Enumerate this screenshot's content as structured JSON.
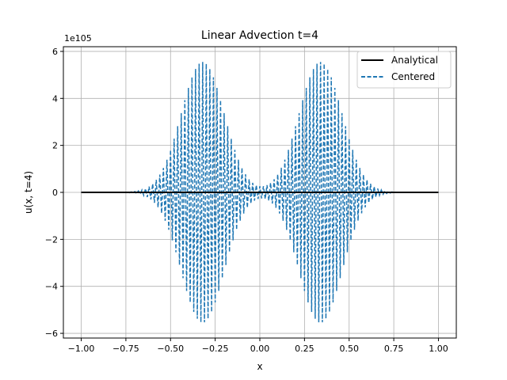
{
  "chart_data": {
    "type": "line",
    "title": "Linear Advection t=4",
    "xlabel": "x",
    "ylabel": "u(x, t=4)",
    "y_offset_text": "1e105",
    "xlim": [
      -1.1,
      1.1
    ],
    "ylim": [
      -6.2,
      6.2
    ],
    "y_scale_note": "values in units of 1e105",
    "x_ticks": [
      -1.0,
      -0.75,
      -0.5,
      -0.25,
      0.0,
      0.25,
      0.5,
      0.75,
      1.0
    ],
    "x_tick_labels": [
      "−1.00",
      "−0.75",
      "−0.50",
      "−0.25",
      "0.00",
      "0.25",
      "0.50",
      "0.75",
      "1.00"
    ],
    "y_ticks": [
      -6,
      -4,
      -2,
      0,
      2,
      4,
      6
    ],
    "y_tick_labels": [
      "−6",
      "−4",
      "−2",
      "0",
      "2",
      "4",
      "6"
    ],
    "grid": true,
    "legend_position": "top-right",
    "series": [
      {
        "name": "Analytical",
        "style": "solid",
        "color": "#000000",
        "x": [
          -1.0,
          1.0
        ],
        "y": [
          0,
          0
        ]
      },
      {
        "name": "Centered",
        "style": "dashed",
        "color": "#1f77b4",
        "domain": [
          -1.0,
          1.0
        ],
        "samples": 201,
        "envelope": {
          "peaks": [
            {
              "center": -0.32,
              "amplitude": 5.55,
              "width": 0.17
            },
            {
              "center": 0.34,
              "amplitude": 5.55,
              "width": 0.17
            }
          ]
        }
      }
    ]
  }
}
